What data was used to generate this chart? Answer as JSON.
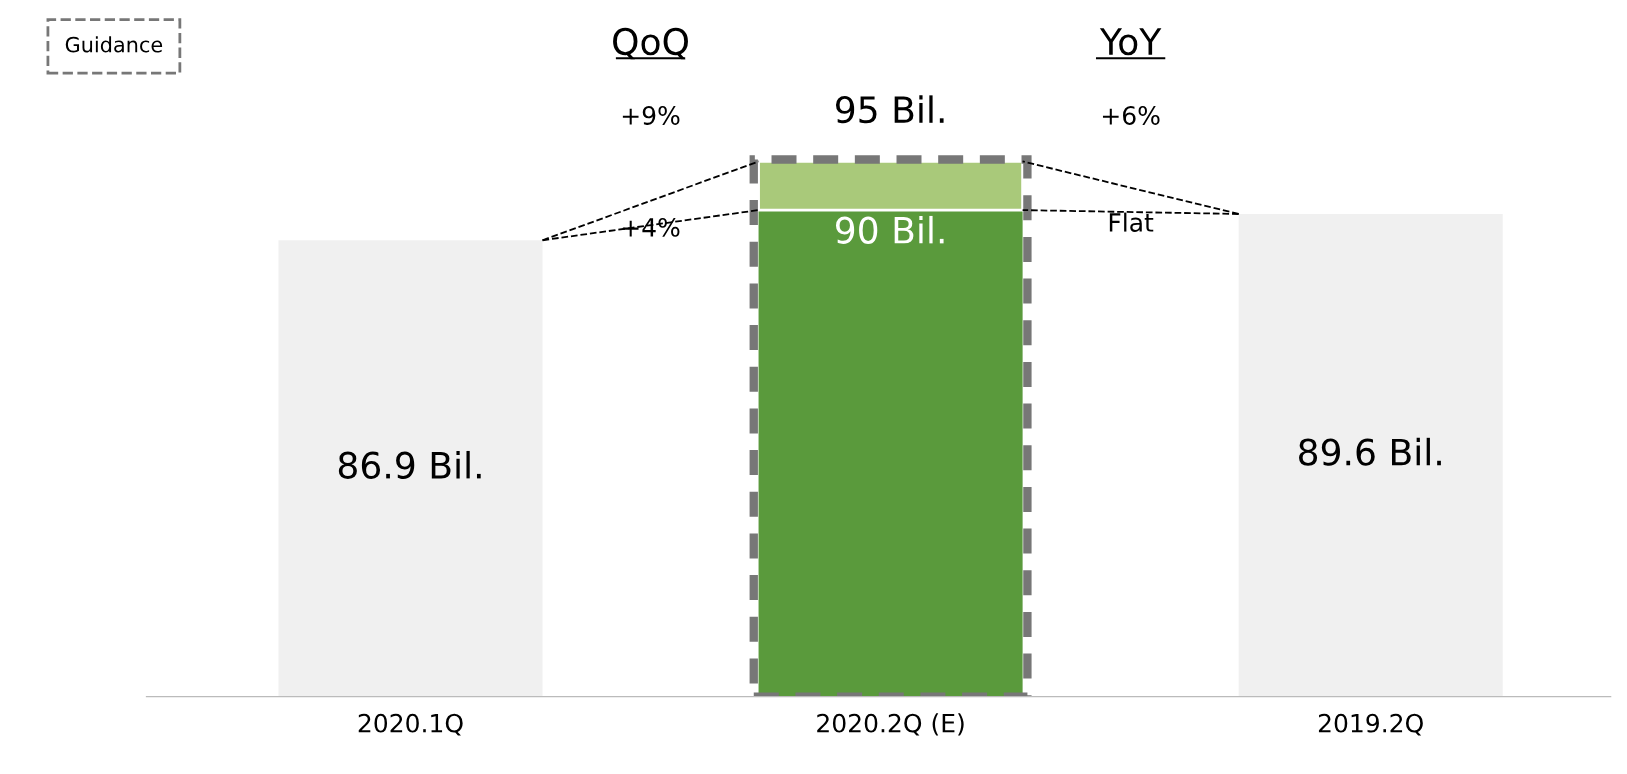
{
  "chart_data": {
    "type": "bar",
    "stacked": true,
    "categories": [
      "2020.1Q",
      "2020.2Q (E)",
      "2019.2Q"
    ],
    "series": [
      {
        "colors": [
          "#f0f0f0",
          "#5a9a3c",
          "#f0f0f0"
        ],
        "values": [
          86.9,
          90,
          89.6
        ],
        "value_labels": [
          "86.9 Bil.",
          "90 Bil.",
          "89.6 Bil."
        ]
      },
      {
        "color": "#a9c97a",
        "values": [
          null,
          5,
          null
        ]
      }
    ],
    "totals": [
      null,
      "95 Bil.",
      null
    ],
    "annotations": [
      "Guidance",
      "QoQ",
      "YoY",
      "+9%",
      "+4%",
      "+6%",
      "Flat"
    ],
    "grid": false,
    "legend": false
  }
}
